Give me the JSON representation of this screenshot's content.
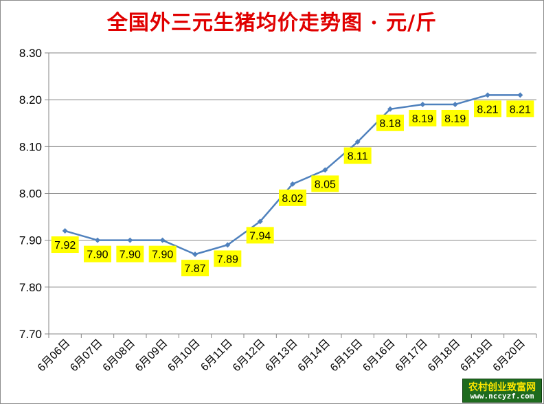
{
  "chart_data": {
    "type": "line",
    "title": "全国外三元生猪均价走势图 · 元/斤",
    "categories": [
      "6月06日",
      "6月07日",
      "6月08日",
      "6月09日",
      "6月10日",
      "6月11日",
      "6月12日",
      "6月13日",
      "6月14日",
      "6月15日",
      "6月16日",
      "6月17日",
      "6月18日",
      "6月19日",
      "6月20日"
    ],
    "values": [
      7.92,
      7.9,
      7.9,
      7.9,
      7.87,
      7.89,
      7.94,
      8.02,
      8.05,
      8.11,
      8.18,
      8.19,
      8.19,
      8.21,
      8.21
    ],
    "value_labels": [
      "7.92",
      "7.90",
      "7.90",
      "7.90",
      "7.87",
      "7.89",
      "7.94",
      "8.02",
      "8.05",
      "8.11",
      "8.18",
      "8.19",
      "8.19",
      "8.21",
      "8.21"
    ],
    "ylim": [
      7.7,
      8.3
    ],
    "yticks": [
      "7.70",
      "7.80",
      "7.90",
      "8.00",
      "8.10",
      "8.20",
      "8.30"
    ],
    "ytick_values": [
      7.7,
      7.8,
      7.9,
      8.0,
      8.1,
      8.2,
      8.3
    ],
    "grid": true,
    "legend": "none",
    "xlabel": "",
    "ylabel": "",
    "colors": {
      "line": "#4f81bd",
      "label_bg": "#ffff00",
      "title": "#e00000"
    }
  },
  "watermark": {
    "line1": "农村创业致富网",
    "line2": "www.nccyzf.com"
  }
}
